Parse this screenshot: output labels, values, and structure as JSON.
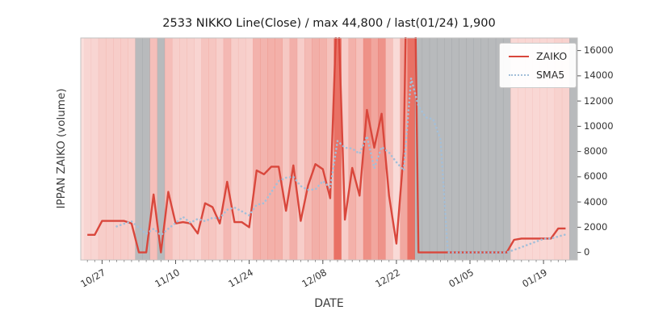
{
  "chart_data": {
    "type": "line",
    "title": "2533 NIKKO Line(Close) / max 44,800 / last(01/24) 1,900",
    "xlabel": "DATE",
    "ylabel": "IPPAN ZAIKO (volume)",
    "ylim": [
      0,
      17000
    ],
    "y_ticks": [
      0,
      2000,
      4000,
      6000,
      8000,
      10000,
      12000,
      14000,
      16000
    ],
    "x_ticks": [
      {
        "index": 2,
        "label": "10/27"
      },
      {
        "index": 12,
        "label": "11/10"
      },
      {
        "index": 22,
        "label": "11/24"
      },
      {
        "index": 32,
        "label": "12/08"
      },
      {
        "index": 42,
        "label": "12/22"
      },
      {
        "index": 52,
        "label": "01/05"
      },
      {
        "index": 62,
        "label": "01/19"
      }
    ],
    "categories": [
      "10/25",
      "10/26",
      "10/27",
      "10/30",
      "10/31",
      "11/01",
      "11/02",
      "11/03",
      "11/06",
      "11/07",
      "11/08",
      "11/09",
      "11/10",
      "11/13",
      "11/14",
      "11/15",
      "11/16",
      "11/17",
      "11/20",
      "11/21",
      "11/22",
      "11/23",
      "11/24",
      "11/27",
      "11/28",
      "11/29",
      "11/30",
      "12/01",
      "12/04",
      "12/05",
      "12/06",
      "12/07",
      "12/08",
      "12/11",
      "12/12",
      "12/13",
      "12/14",
      "12/15",
      "12/18",
      "12/19",
      "12/20",
      "12/21",
      "12/22",
      "12/25",
      "12/26",
      "12/27",
      "12/28",
      "12/29",
      "01/01",
      "01/02",
      "01/03",
      "01/04",
      "01/05",
      "01/08",
      "01/09",
      "01/10",
      "01/11",
      "01/12",
      "01/15",
      "01/16",
      "01/17",
      "01/18",
      "01/19",
      "01/22",
      "01/23",
      "01/24"
    ],
    "series": [
      {
        "name": "ZAIKO",
        "color": "#d9473c",
        "style": "solid",
        "values": [
          1400,
          1400,
          2500,
          2500,
          2500,
          2500,
          2300,
          0,
          0,
          4600,
          0,
          4800,
          2300,
          2400,
          2300,
          1500,
          3900,
          3600,
          2300,
          5600,
          2400,
          2400,
          2000,
          6500,
          6200,
          6800,
          6800,
          3300,
          6900,
          2500,
          5300,
          7000,
          6600,
          4300,
          21000,
          2600,
          6700,
          4500,
          11300,
          8300,
          11000,
          4500,
          700,
          8000,
          44800,
          0,
          0,
          0,
          0,
          0,
          0,
          0,
          0,
          0,
          0,
          0,
          0,
          0,
          1000,
          1100,
          1100,
          1100,
          1100,
          1100,
          1900,
          1900
        ]
      },
      {
        "name": "SMA5",
        "color": "#a3bfd9",
        "style": "dotted",
        "derived_from": "5-period moving average of ZAIKO"
      }
    ],
    "legend_position": "upper right",
    "stats": {
      "max": 44800,
      "last_date": "01/24",
      "last_value": 1900
    },
    "background": {
      "red_stripe_color": "#e34d3e",
      "gray_stripe_color": "#7d8185",
      "note": "one vertical stripe per day; gray stripe when volume is 0, red opacity scales with volume"
    }
  }
}
